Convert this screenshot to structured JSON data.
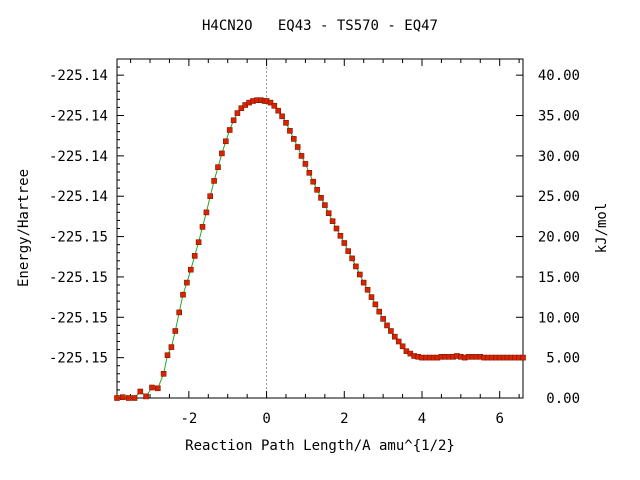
{
  "chart_data": {
    "type": "line",
    "title": "H4CN2O   EQ43 - TS570 - EQ47",
    "xlabel": "Reaction Path Length/A amu^{1/2}",
    "ylabel_left": "Energy/Hartree",
    "ylabel_right": "kJ/mol",
    "xlim": [
      -3.85,
      6.6
    ],
    "ylim_right": [
      0,
      42
    ],
    "x_ticks": [
      "-2",
      "0",
      "2",
      "4",
      "6"
    ],
    "x_tick_values": [
      -2,
      0,
      2,
      4,
      6
    ],
    "y_left_ticks": [
      "-225.14",
      "-225.14",
      "-225.14",
      "-225.14",
      "-225.15",
      "-225.15",
      "-225.15",
      "-225.15"
    ],
    "y_left_tick_values": [
      40,
      35,
      30,
      25,
      20,
      15,
      10,
      5
    ],
    "y_right_ticks": [
      "40.00",
      "35.00",
      "30.00",
      "25.00",
      "20.00",
      "15.00",
      "10.00",
      "5.00",
      "0.00"
    ],
    "y_right_tick_values": [
      40,
      35,
      30,
      25,
      20,
      15,
      10,
      5,
      0
    ],
    "ts_x": 0,
    "colors": {
      "line": "#22aa22",
      "marker": "#dd2200",
      "ts_line": "#999999"
    },
    "series": [
      {
        "x": [
          -3.85,
          -3.7,
          -3.55,
          -3.4,
          -3.25,
          -3.1,
          -2.95,
          -2.8,
          -2.65,
          -2.55,
          -2.45,
          -2.35,
          -2.25,
          -2.15,
          -2.05,
          -1.95,
          -1.85,
          -1.75,
          -1.65,
          -1.55,
          -1.45,
          -1.35,
          -1.25,
          -1.15,
          -1.05,
          -0.95,
          -0.85,
          -0.75,
          -0.65,
          -0.55,
          -0.45,
          -0.35,
          -0.25,
          -0.15,
          -0.05,
          0,
          0.1,
          0.2,
          0.3,
          0.4,
          0.5,
          0.6,
          0.7,
          0.8,
          0.9,
          1.0,
          1.1,
          1.2,
          1.3,
          1.4,
          1.5,
          1.6,
          1.7,
          1.8,
          1.9,
          2.0,
          2.1,
          2.2,
          2.3,
          2.4,
          2.5,
          2.6,
          2.7,
          2.8,
          2.9,
          3.0,
          3.1,
          3.2,
          3.3,
          3.4,
          3.5,
          3.6,
          3.7,
          3.8,
          3.9,
          4.0,
          4.1,
          4.2,
          4.3,
          4.4,
          4.5,
          4.6,
          4.7,
          4.8,
          4.9,
          5.0,
          5.1,
          5.2,
          5.3,
          5.4,
          5.5,
          5.6,
          5.7,
          5.8,
          5.9,
          6.0,
          6.1,
          6.2,
          6.3,
          6.4,
          6.5,
          6.6
        ],
        "y": [
          0.0,
          0.1,
          0.0,
          0.0,
          0.8,
          0.2,
          1.3,
          1.2,
          3.0,
          5.3,
          6.3,
          8.3,
          10.6,
          12.8,
          14.3,
          15.9,
          17.6,
          19.3,
          21.2,
          23.0,
          25.0,
          26.9,
          28.6,
          30.3,
          31.8,
          33.2,
          34.4,
          35.3,
          35.9,
          36.3,
          36.6,
          36.8,
          36.9,
          36.9,
          36.8,
          36.8,
          36.6,
          36.2,
          35.6,
          34.9,
          34.1,
          33.1,
          32.1,
          31.1,
          30.0,
          29.0,
          27.9,
          26.8,
          25.8,
          24.8,
          23.9,
          22.9,
          21.9,
          21.0,
          20.1,
          19.2,
          18.2,
          17.3,
          16.3,
          15.3,
          14.3,
          13.4,
          12.5,
          11.6,
          10.7,
          9.8,
          9.0,
          8.3,
          7.6,
          7.0,
          6.4,
          5.8,
          5.5,
          5.2,
          5.1,
          5.0,
          5.0,
          5.0,
          5.0,
          5.0,
          5.1,
          5.1,
          5.1,
          5.1,
          5.2,
          5.1,
          5.0,
          5.1,
          5.1,
          5.1,
          5.1,
          5.0,
          5.0,
          5.0,
          5.0,
          5.0,
          5.0,
          5.0,
          5.0,
          5.0,
          5.0,
          5.0
        ]
      }
    ]
  }
}
